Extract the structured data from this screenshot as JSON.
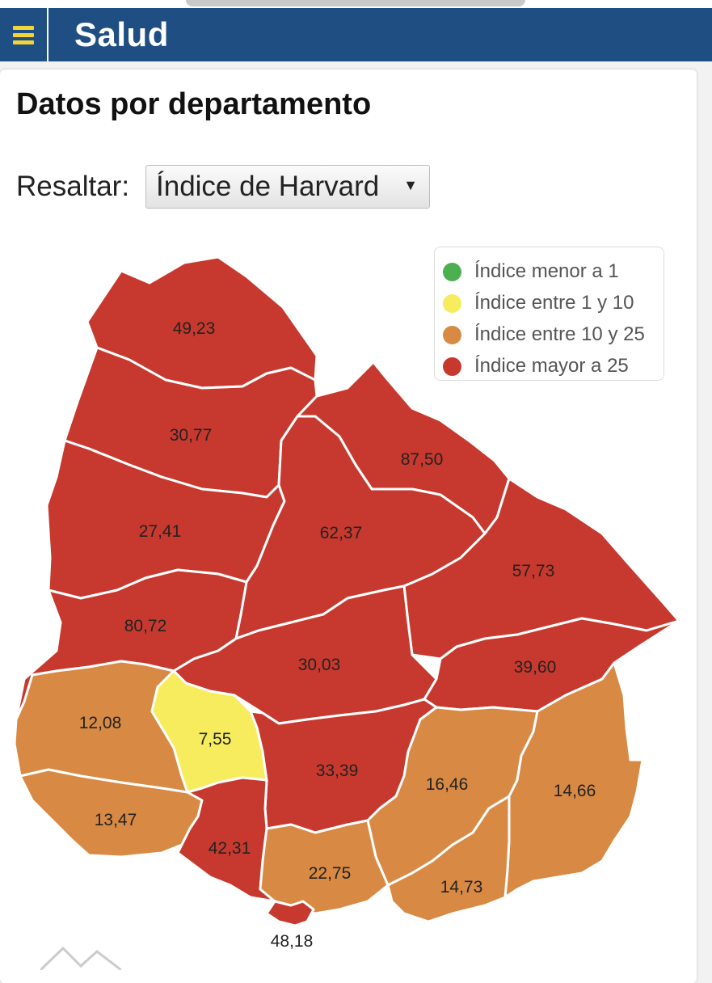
{
  "header": {
    "title": "Salud",
    "menu_icon": "hamburger-icon"
  },
  "section": {
    "title": "Datos por departamento"
  },
  "filter": {
    "label": "Resaltar:",
    "selected": "Índice de Harvard"
  },
  "legend": [
    {
      "label": "Índice menor a 1",
      "color": "#4caf50"
    },
    {
      "label": "Índice entre 1 y 10",
      "color": "#f7ec5d"
    },
    {
      "label": "Índice entre 10 y 25",
      "color": "#d88a44"
    },
    {
      "label": "Índice mayor a 25",
      "color": "#c7392e"
    }
  ],
  "departments": [
    {
      "value": "49,23",
      "category": 3
    },
    {
      "value": "30,77",
      "category": 3
    },
    {
      "value": "87,50",
      "category": 3
    },
    {
      "value": "27,41",
      "category": 3
    },
    {
      "value": "62,37",
      "category": 3
    },
    {
      "value": "57,73",
      "category": 3
    },
    {
      "value": "80,72",
      "category": 3
    },
    {
      "value": "30,03",
      "category": 3
    },
    {
      "value": "39,60",
      "category": 3
    },
    {
      "value": "12,08",
      "category": 2
    },
    {
      "value": "7,55",
      "category": 1
    },
    {
      "value": "33,39",
      "category": 3
    },
    {
      "value": "16,46",
      "category": 2
    },
    {
      "value": "14,66",
      "category": 2
    },
    {
      "value": "13,47",
      "category": 2
    },
    {
      "value": "42,31",
      "category": 3
    },
    {
      "value": "22,75",
      "category": 2
    },
    {
      "value": "14,73",
      "category": 2
    },
    {
      "value": "48,18",
      "category": 3
    }
  ]
}
